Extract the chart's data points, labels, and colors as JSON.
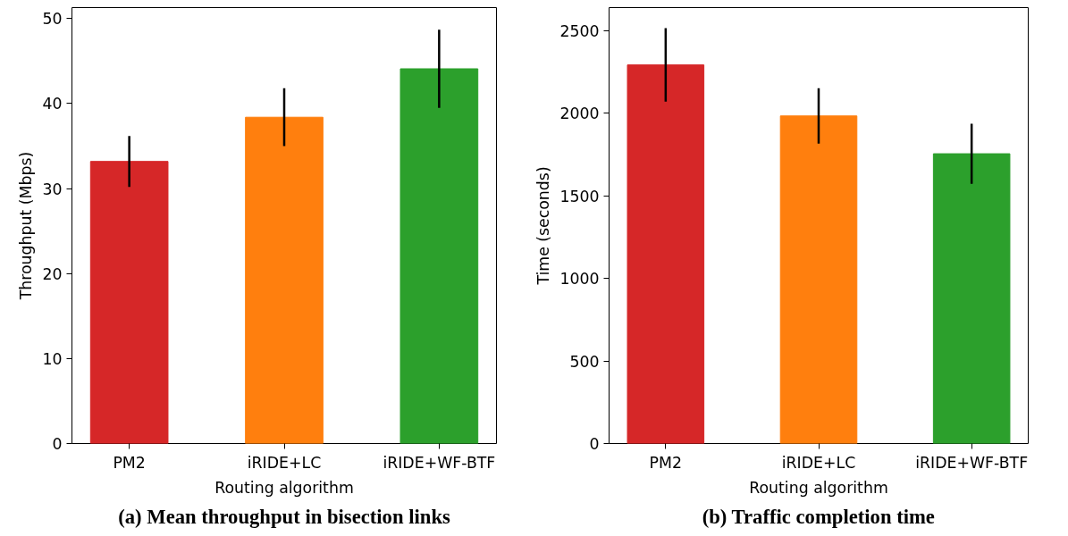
{
  "chart_data": [
    {
      "type": "bar",
      "title": "(a) Mean throughput in bisection links",
      "xlabel": "Routing algorithm",
      "ylabel": "Throughput (Mbps)",
      "categories": [
        "PM2",
        "iRIDE+LC",
        "iRIDE+WF-BTF"
      ],
      "values": [
        33.2,
        38.4,
        44.1
      ],
      "colors": [
        "#d62728",
        "#ff7f0e",
        "#2ca02c"
      ],
      "errors": [
        3.0,
        3.4,
        4.6
      ],
      "ylim": [
        0,
        51.3
      ],
      "yticks": [
        0,
        10,
        20,
        30,
        40,
        50
      ],
      "grid": false
    },
    {
      "type": "bar",
      "title": "(b) Traffic completion time",
      "xlabel": "Routing algorithm",
      "ylabel": "Time (seconds)",
      "categories": [
        "PM2",
        "iRIDE+LC",
        "iRIDE+WF-BTF"
      ],
      "values": [
        2293,
        1984,
        1755
      ],
      "colors": [
        "#d62728",
        "#ff7f0e",
        "#2ca02c"
      ],
      "errors": [
        223,
        168,
        182
      ],
      "ylim": [
        0,
        2640
      ],
      "yticks": [
        0,
        500,
        1000,
        1500,
        2000,
        2500
      ],
      "grid": false
    }
  ]
}
